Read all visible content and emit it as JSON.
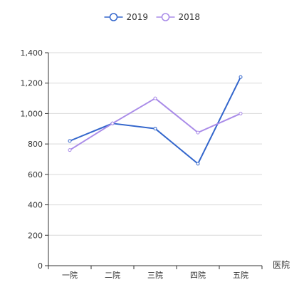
{
  "chart_data": {
    "type": "line",
    "categories": [
      "一院",
      "二院",
      "三院",
      "四院",
      "五院"
    ],
    "series": [
      {
        "name": "2019",
        "color": "#3366cc",
        "values": [
          820,
          935,
          901,
          670,
          1240
        ]
      },
      {
        "name": "2018",
        "color": "#a98be8",
        "values": [
          760,
          935,
          1100,
          875,
          1000
        ]
      }
    ],
    "xlabel": "医院",
    "ylabel": "",
    "ylim": [
      0,
      1400
    ],
    "yticks": [
      0,
      200,
      400,
      600,
      800,
      1000,
      1200,
      1400
    ],
    "ytick_labels": [
      "0",
      "200",
      "400",
      "600",
      "800",
      "1,000",
      "1,200",
      "1,400"
    ],
    "grid": true,
    "legend_position": "top-center"
  }
}
